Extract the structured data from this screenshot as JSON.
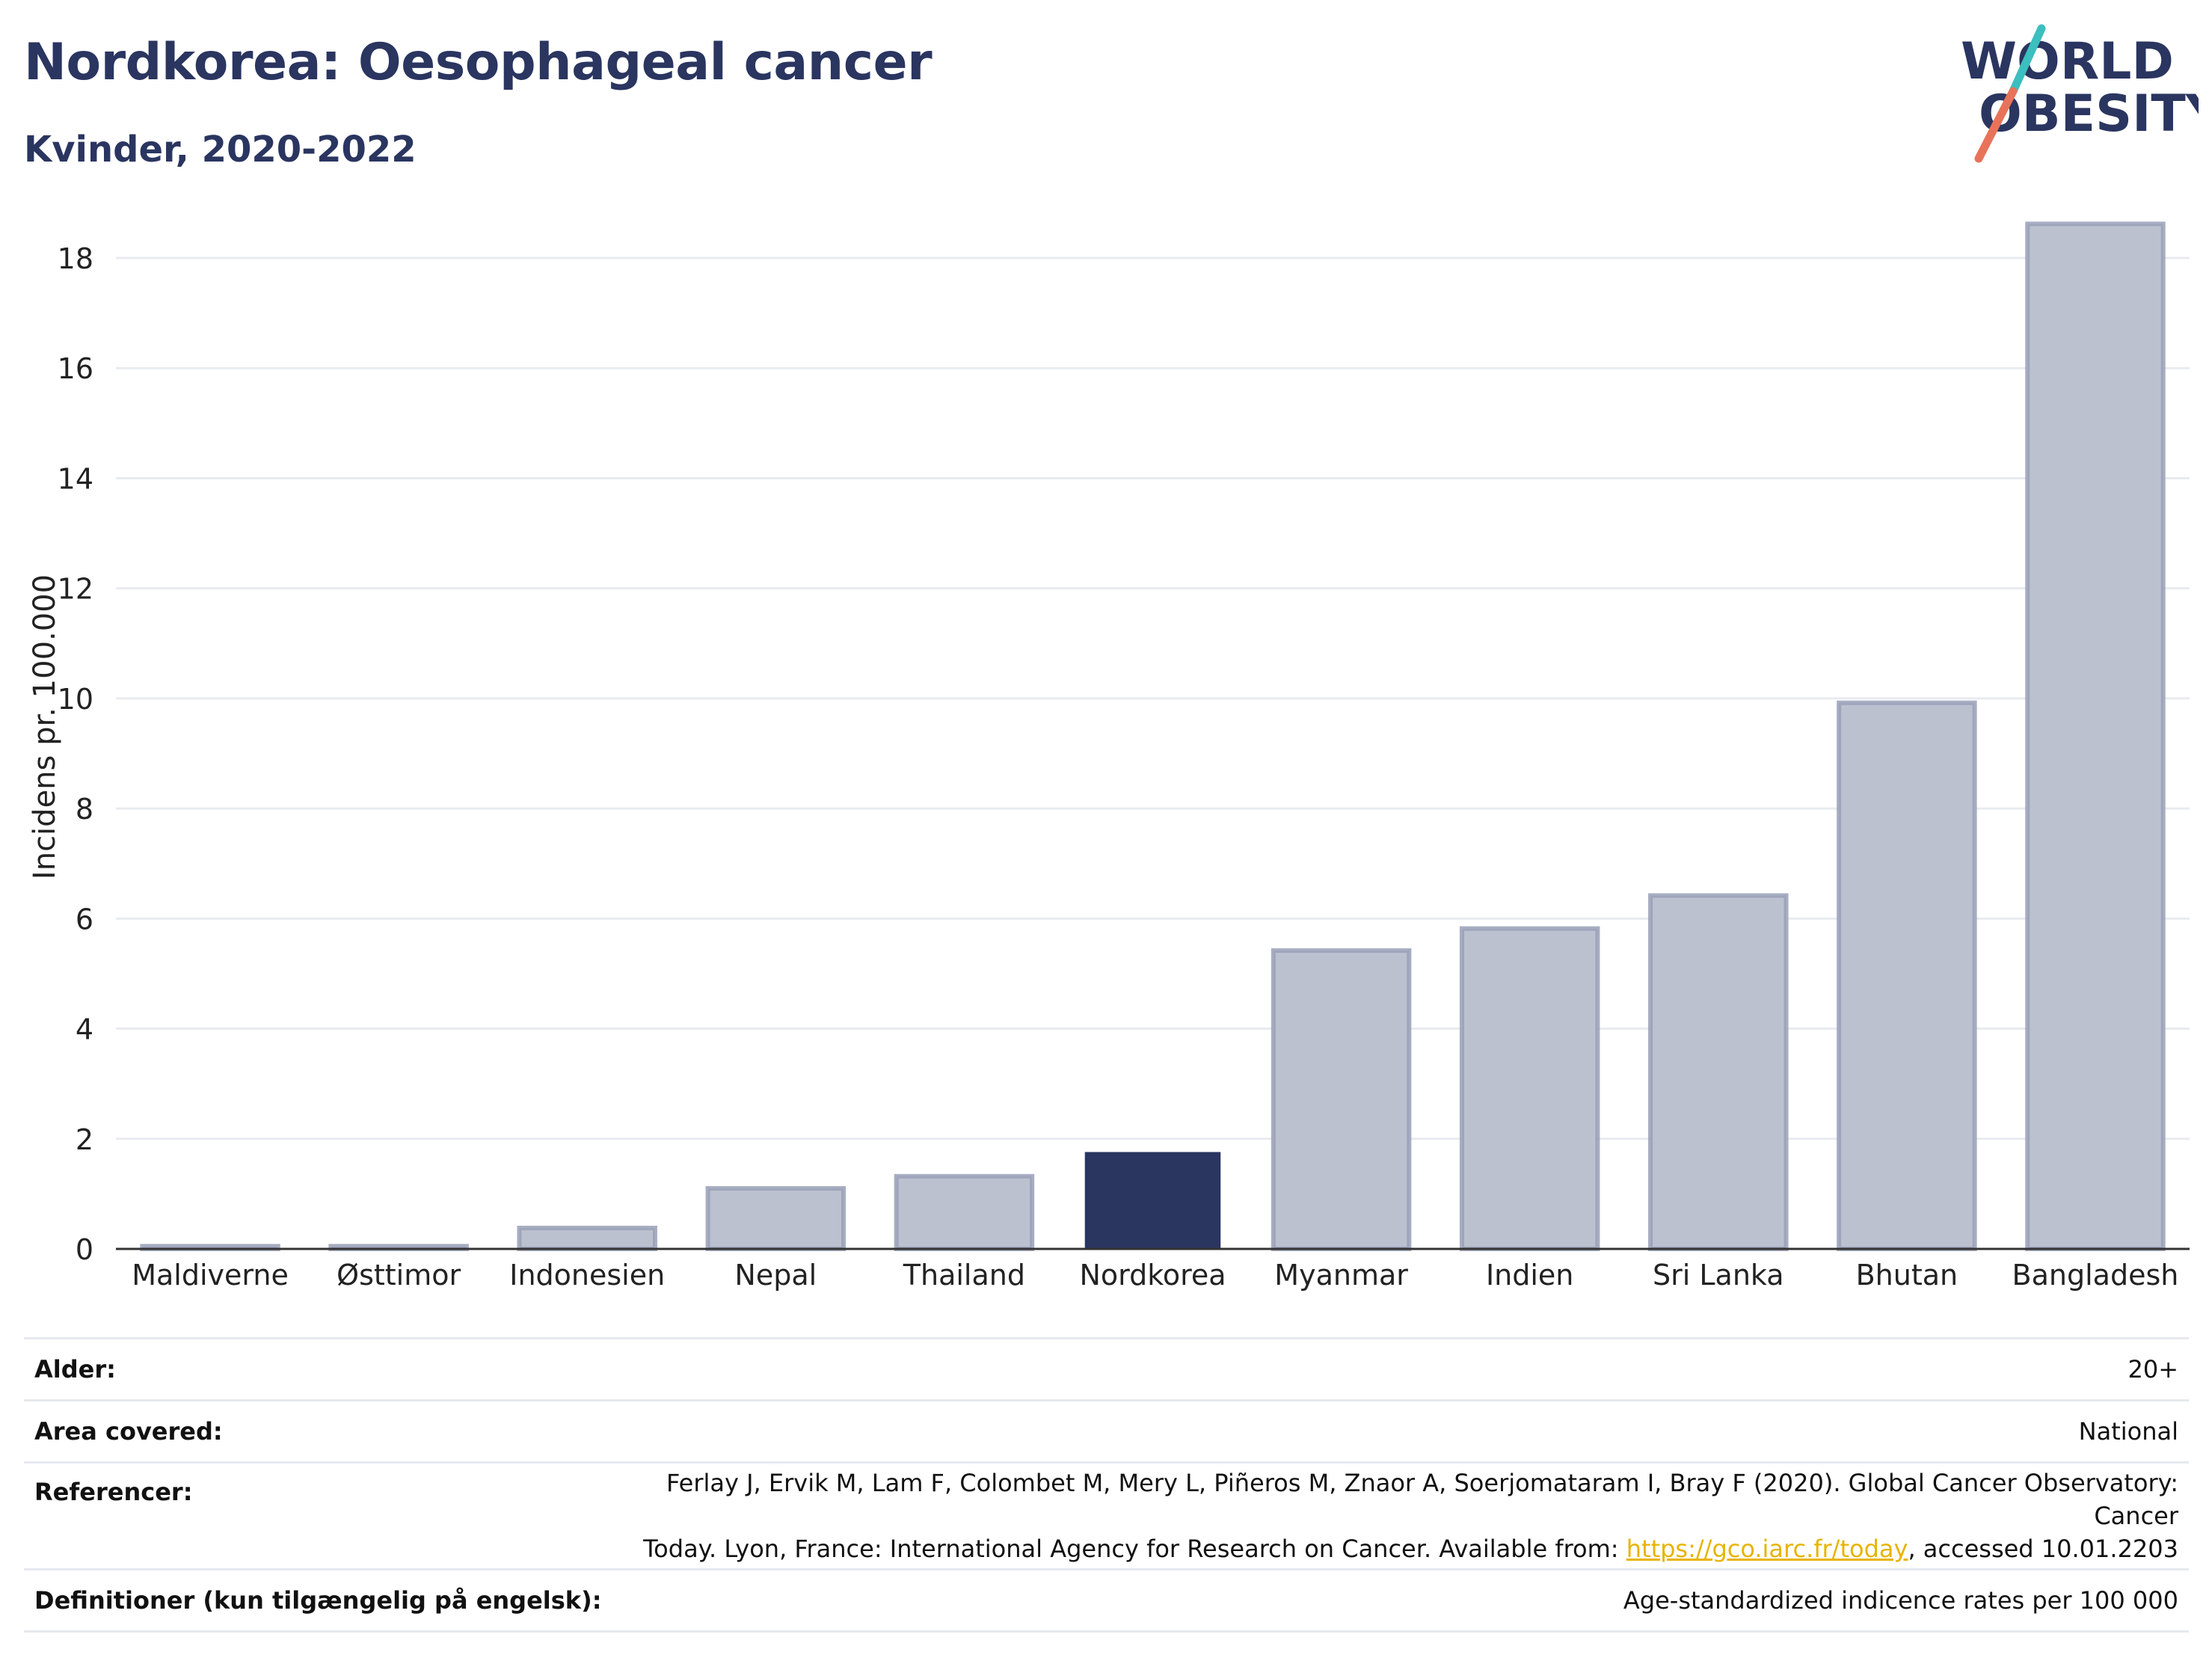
{
  "header": {
    "title": "Nordkorea: Oesophageal cancer",
    "subtitle": "Kvinder, 2020-2022"
  },
  "logo": {
    "line1": "WORLD",
    "line2": "OBESITY",
    "text_color": "#2a3560",
    "slash_colors": [
      "#3bbfbf",
      "#e8735a"
    ]
  },
  "chart_data": {
    "type": "bar",
    "categories": [
      "Maldiverne",
      "Østtimor",
      "Indonesien",
      "Nepal",
      "Thailand",
      "Nordkorea",
      "Myanmar",
      "Indien",
      "Sri Lanka",
      "Bhutan",
      "Bangladesh"
    ],
    "values": [
      0.05,
      0.05,
      0.38,
      1.1,
      1.32,
      1.76,
      5.42,
      5.82,
      6.42,
      9.92,
      18.62
    ],
    "highlight": "Nordkorea",
    "ylabel": "Incidens pr. 100.000",
    "xlabel": "",
    "ylim": [
      0,
      19
    ],
    "yticks": [
      0,
      2,
      4,
      6,
      8,
      10,
      12,
      14,
      16,
      18
    ],
    "grid": true,
    "colors": {
      "bar": "#bcc1cf",
      "bar_edge": "#99a0b7",
      "highlight": "#2a3560",
      "grid": "#e8ebef",
      "axis": "#333333"
    }
  },
  "meta": {
    "age_label": "Alder:",
    "age_value": "20+",
    "area_label": "Area covered:",
    "area_value": "National",
    "ref_label": "Referencer:",
    "ref_line1": "Ferlay J, Ervik M, Lam F, Colombet M, Mery L, Piñeros M, Znaor A, Soerjomataram I, Bray F (2020). Global Cancer Observatory: Cancer",
    "ref_line2_pre": "Today. Lyon, France: International Agency for Research on Cancer. Available from: ",
    "ref_link": "https://gco.iarc.fr/today",
    "ref_line2_post": ", accessed 10.01.2203",
    "def_label": "Definitioner (kun tilgængelig på engelsk):",
    "def_value": "Age-standardized indicence rates per 100 000"
  }
}
